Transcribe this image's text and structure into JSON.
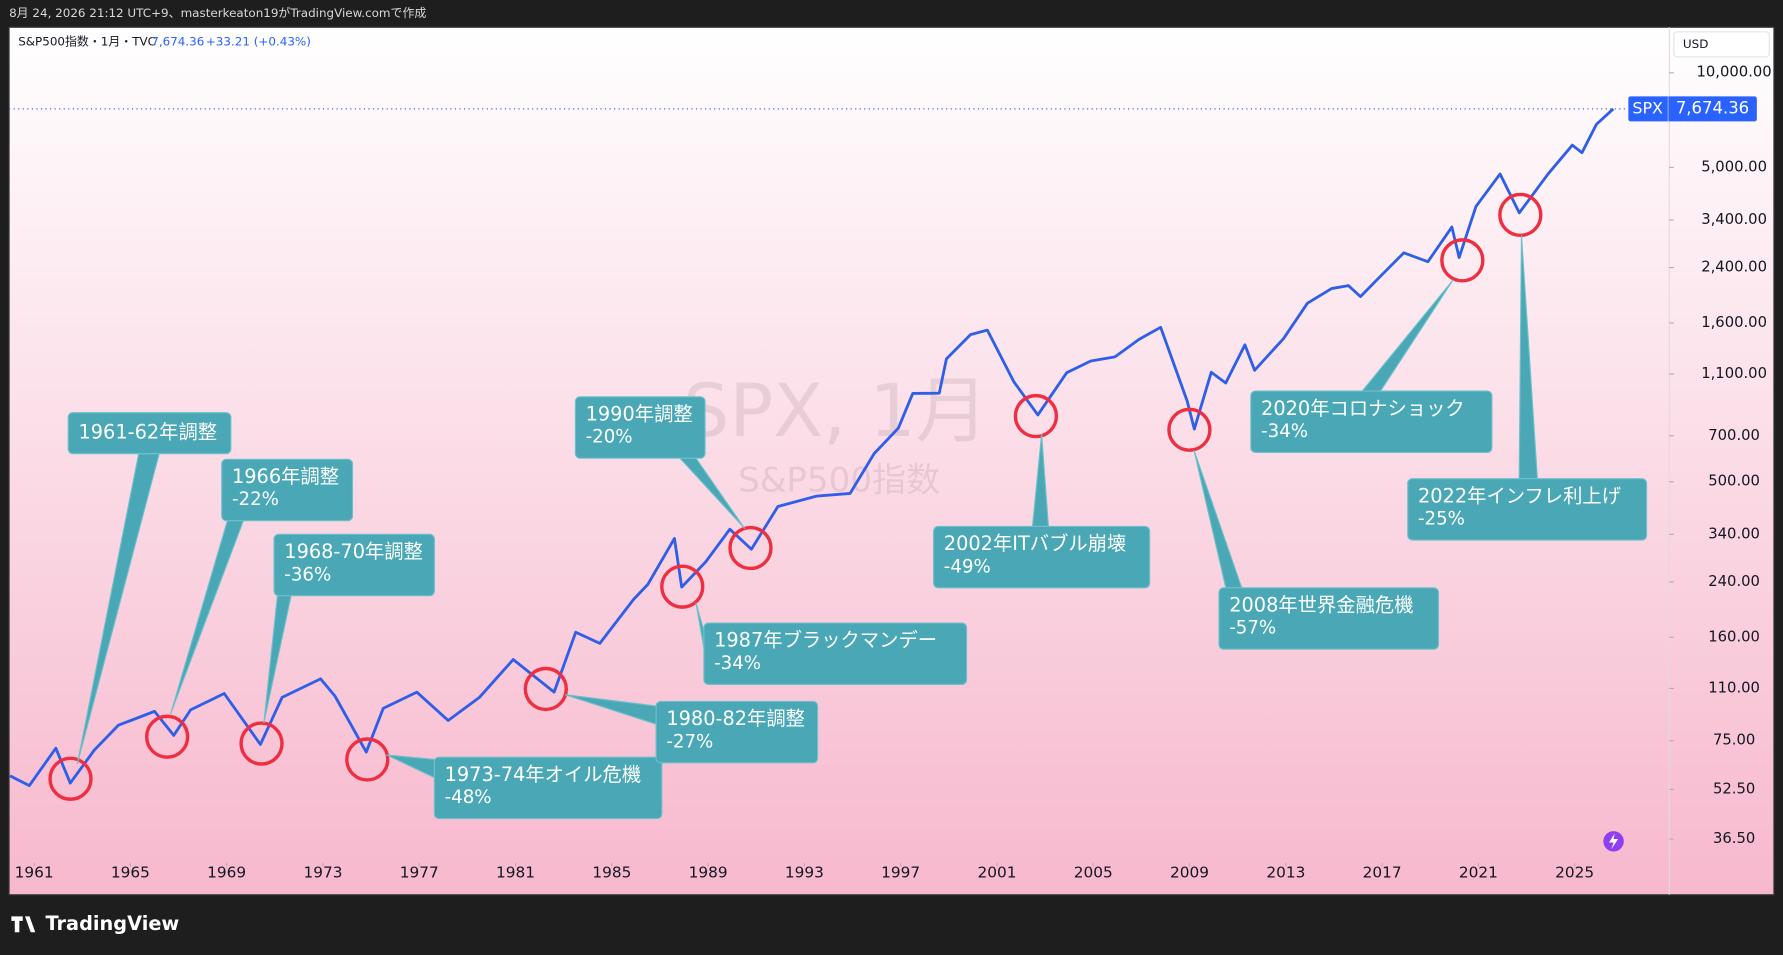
{
  "caption": "8月 24, 2026 21:12 UTC+9、masterkeaton19がTradingView.comで作成",
  "footer": "TradingView",
  "chart_data": {
    "type": "line",
    "title": "S&P500指数・1月・TVC",
    "change": "+33.21 (+0.43%)",
    "currency": "USD",
    "watermark": {
      "symbol": "SPX, 1月",
      "name": "S&P500指数"
    },
    "price_label": {
      "symbol": "SPX",
      "value": 7674.36,
      "label": "7,674.36"
    },
    "color": "#2f5fe8",
    "yscale": "log",
    "grid": false,
    "x": [
      1960.0,
      1960.8,
      1961.9,
      1962.5,
      1963.5,
      1964.5,
      1966.0,
      1966.8,
      1967.5,
      1968.9,
      1970.4,
      1971.3,
      1972.9,
      1973.5,
      1974.8,
      1975.5,
      1976.9,
      1978.2,
      1979.5,
      1980.9,
      1981.5,
      1982.6,
      1983.5,
      1984.5,
      1985.9,
      1986.5,
      1987.6,
      1987.9,
      1988.9,
      1989.9,
      1990.8,
      1991.9,
      1993.5,
      1994.9,
      1995.9,
      1996.9,
      1997.5,
      1998.6,
      1998.9,
      1999.9,
      2000.6,
      2001.7,
      2002.7,
      2003.9,
      2004.9,
      2005.9,
      2006.9,
      2007.8,
      2008.9,
      2009.2,
      2009.9,
      2010.5,
      2011.3,
      2011.7,
      2012.9,
      2013.9,
      2014.9,
      2015.6,
      2016.1,
      2016.9,
      2017.9,
      2018.9,
      2019.9,
      2020.2,
      2020.9,
      2021.9,
      2022.7,
      2023.9,
      2024.9,
      2025.3,
      2025.9,
      2026.6
    ],
    "values": [
      58,
      54,
      71,
      55,
      70,
      84,
      93,
      78,
      94,
      106,
      73,
      103,
      118,
      104,
      69,
      95,
      107,
      87,
      103,
      136,
      125,
      107,
      166,
      153,
      211,
      236,
      330,
      231,
      278,
      353,
      305,
      417,
      450,
      459,
      615,
      740,
      954,
      957,
      1229,
      1469,
      1517,
      1040,
      815,
      1111,
      1211,
      1248,
      1418,
      1549,
      903,
      735,
      1115,
      1030,
      1363,
      1131,
      1426,
      1848,
      2058,
      2104,
      1940,
      2238,
      2673,
      2506,
      3230,
      2584,
      3756,
      4766,
      3585,
      4769,
      5881,
      5569,
      6850,
      7674.36
    ],
    "xlim": [
      1959.96,
      2028.93
    ],
    "ylim": [
      30.9,
      13950
    ],
    "xticks": [
      1961,
      1965,
      1969,
      1973,
      1977,
      1981,
      1985,
      1989,
      1993,
      1997,
      2001,
      2005,
      2009,
      2013,
      2017,
      2021,
      2025
    ],
    "yticks": [
      {
        "value": 36.5,
        "label": "36.50"
      },
      {
        "value": 52.5,
        "label": "52.50"
      },
      {
        "value": 75,
        "label": "75.00"
      },
      {
        "value": 110,
        "label": "110.00"
      },
      {
        "value": 160,
        "label": "160.00"
      },
      {
        "value": 240,
        "label": "240.00"
      },
      {
        "value": 340,
        "label": "340.00"
      },
      {
        "value": 500,
        "label": "500.00"
      },
      {
        "value": 700,
        "label": "700.00"
      },
      {
        "value": 1100,
        "label": "1,100.00"
      },
      {
        "value": 1600,
        "label": "1,600.00"
      },
      {
        "value": 2400,
        "label": "2,400.00"
      },
      {
        "value": 3400,
        "label": "3,400.00"
      },
      {
        "value": 5000,
        "label": "5,000.00"
      },
      {
        "value": 10000,
        "label": "10,000.00"
      }
    ],
    "annotations": [
      {
        "title": "1961-62年調整"
      },
      {
        "title": "1966年調整",
        "change": "-22%"
      },
      {
        "title": "1968-70年調整",
        "change": "-36%"
      },
      {
        "title": "1973-74年オイル危機",
        "change": "-48%"
      },
      {
        "title": "1980-82年調整",
        "change": "-27%"
      },
      {
        "title": "1987年ブラックマンデー",
        "change": "-34%"
      },
      {
        "title": "1990年調整",
        "change": "-20%"
      },
      {
        "title": "2002年ITバブル崩壊",
        "change": "-49%"
      },
      {
        "title": "2008年世界金融危機",
        "change": "-57%"
      },
      {
        "title": "2020年コロナショック",
        "change": "-34%"
      },
      {
        "title": "2022年インフレ利上げ",
        "change": "-25%"
      }
    ]
  }
}
